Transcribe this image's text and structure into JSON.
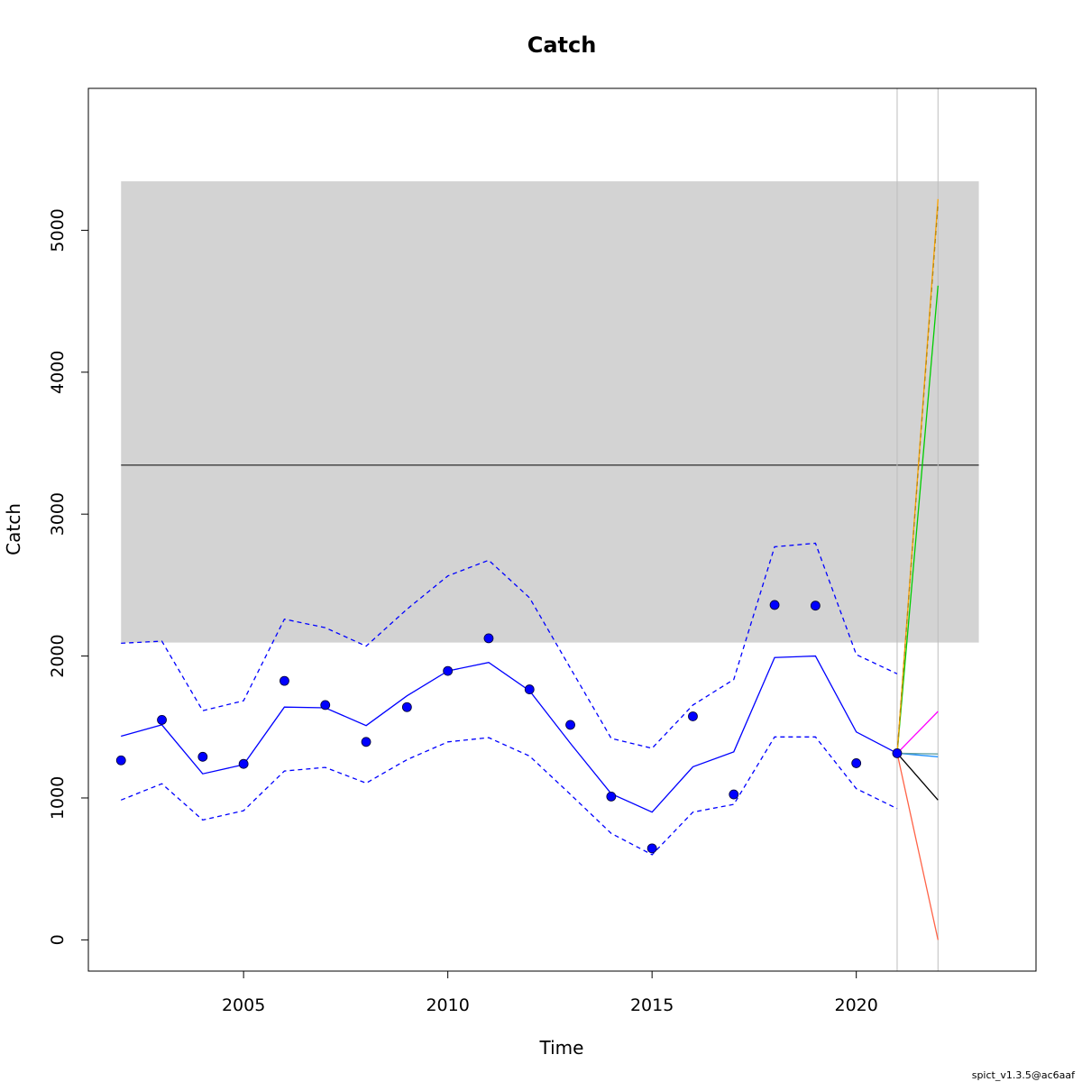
{
  "chart_data": {
    "type": "line",
    "title": "Catch",
    "xlabel": "Time",
    "ylabel": "Catch",
    "xlim": [
      2001.2,
      2024.4
    ],
    "ylim": [
      -220,
      6000
    ],
    "x_ticks": [
      "2005",
      "2010",
      "2015",
      "2020"
    ],
    "y_ticks": [
      "0",
      "1000",
      "2000",
      "3000",
      "4000",
      "5000"
    ],
    "grid": false,
    "reference_band": {
      "x": [
        2002,
        2023
      ],
      "y": [
        2095,
        5345
      ],
      "color": "#d3d3d3"
    },
    "reference_line": {
      "y": 3345,
      "color": "#000000"
    },
    "vertical_lines": {
      "x": [
        2021,
        2022
      ],
      "color": "#bebebe"
    },
    "series": [
      {
        "style": "points",
        "color": "#0000ff",
        "x": [
          2002,
          2003,
          2004,
          2005,
          2006,
          2007,
          2008,
          2009,
          2010,
          2011,
          2012,
          2013,
          2014,
          2015,
          2016,
          2017,
          2018,
          2019,
          2020,
          2021
        ],
        "y": [
          1265,
          1550,
          1290,
          1240,
          1825,
          1655,
          1395,
          1640,
          1895,
          2125,
          1765,
          1515,
          1010,
          645,
          1575,
          1025,
          2360,
          2355,
          1245,
          1315
        ]
      },
      {
        "style": "solid",
        "color": "#0000ff",
        "x": [
          2002,
          2003,
          2004,
          2005,
          2006,
          2007,
          2008,
          2009,
          2010,
          2011,
          2012,
          2013,
          2014,
          2015,
          2016,
          2017,
          2018,
          2019,
          2020,
          2021
        ],
        "y": [
          1435,
          1515,
          1170,
          1235,
          1640,
          1635,
          1510,
          1720,
          1895,
          1955,
          1755,
          1385,
          1030,
          900,
          1220,
          1325,
          1990,
          2000,
          1465,
          1315
        ]
      },
      {
        "style": "dashed",
        "color": "#0000ff",
        "x": [
          2002,
          2003,
          2004,
          2005,
          2006,
          2007,
          2008,
          2009,
          2010,
          2011,
          2012,
          2013,
          2014,
          2015,
          2016,
          2017,
          2018,
          2019,
          2020,
          2021
        ],
        "y": [
          2090,
          2105,
          1615,
          1685,
          2260,
          2200,
          2070,
          2330,
          2565,
          2675,
          2410,
          1915,
          1420,
          1350,
          1655,
          1835,
          2770,
          2795,
          2010,
          1875
        ]
      },
      {
        "style": "dashed",
        "color": "#0000ff",
        "x": [
          2002,
          2003,
          2004,
          2005,
          2006,
          2007,
          2008,
          2009,
          2010,
          2011,
          2012,
          2013,
          2014,
          2015,
          2016,
          2017,
          2018,
          2019,
          2020,
          2021
        ],
        "y": [
          985,
          1100,
          845,
          910,
          1190,
          1215,
          1105,
          1270,
          1395,
          1425,
          1295,
          1025,
          750,
          600,
          900,
          955,
          1430,
          1430,
          1065,
          925
        ]
      },
      {
        "style": "solid",
        "color": "#ff6347",
        "x": [
          2021,
          2022
        ],
        "y": [
          1315,
          0
        ]
      },
      {
        "style": "solid",
        "color": "#000000",
        "x": [
          2021,
          2022
        ],
        "y": [
          1315,
          985
        ]
      },
      {
        "style": "solid",
        "color": "#1e90ff",
        "x": [
          2021,
          2022
        ],
        "y": [
          1315,
          1290
        ]
      },
      {
        "style": "solid",
        "color": "#5f9ea0",
        "x": [
          2021,
          2022
        ],
        "y": [
          1315,
          1310
        ]
      },
      {
        "style": "solid",
        "color": "#ff00ff",
        "x": [
          2021,
          2022
        ],
        "y": [
          1315,
          1610
        ]
      },
      {
        "style": "solid",
        "color": "#00cd00",
        "x": [
          2021,
          2022
        ],
        "y": [
          1315,
          4610
        ]
      },
      {
        "style": "solid",
        "color": "#ffa500",
        "x": [
          2021,
          2022
        ],
        "y": [
          1315,
          5220
        ]
      },
      {
        "style": "dashed",
        "color": "#b8860b",
        "x": [
          2021,
          2022
        ],
        "y": [
          1315,
          5185
        ]
      }
    ]
  },
  "footer": {
    "text": "spict_v1.3.5@ac6aaf"
  }
}
